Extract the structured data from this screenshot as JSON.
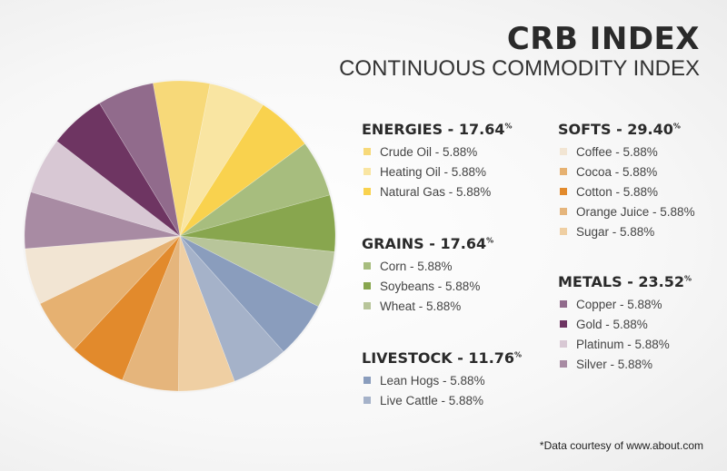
{
  "title": "CRB INDEX",
  "subtitle": "CONTINUOUS COMMODITY INDEX",
  "footnote": "*Data courtesy of www.about.com",
  "chart_data": {
    "type": "pie",
    "title": "CRB INDEX",
    "subtitle": "CONTINUOUS COMMODITY INDEX",
    "groups": [
      {
        "name": "ENERGIES",
        "total": "17.64",
        "items": [
          {
            "label": "Crude Oil - 5.88%",
            "name": "Crude Oil",
            "value": 5.88,
            "color": "#f7d979"
          },
          {
            "label": "Heating Oil - 5.88%",
            "name": "Heating Oil",
            "value": 5.88,
            "color": "#f9e5a2"
          },
          {
            "label": "Natural Gas - 5.88%",
            "name": "Natural Gas",
            "value": 5.88,
            "color": "#f9d24e"
          }
        ]
      },
      {
        "name": "GRAINS",
        "total": "17.64",
        "items": [
          {
            "label": "Corn - 5.88%",
            "name": "Corn",
            "value": 5.88,
            "color": "#a7bd7e"
          },
          {
            "label": "Soybeans - 5.88%",
            "name": "Soybeans",
            "value": 5.88,
            "color": "#88a64e"
          },
          {
            "label": "Wheat - 5.88%",
            "name": "Wheat",
            "value": 5.88,
            "color": "#b8c59a"
          }
        ]
      },
      {
        "name": "LIVESTOCK",
        "total": "11.76",
        "items": [
          {
            "label": "Lean Hogs - 5.88%",
            "name": "Lean Hogs",
            "value": 5.88,
            "color": "#8a9dbd"
          },
          {
            "label": "Live Cattle - 5.88%",
            "name": "Live Cattle",
            "value": 5.88,
            "color": "#a5b2c9"
          }
        ]
      },
      {
        "name": "SOFTS",
        "total": "29.40",
        "items": [
          {
            "label": "Coffee - 5.88%",
            "name": "Coffee",
            "value": 5.88,
            "color": "#f2e5d3"
          },
          {
            "label": "Cocoa - 5.88%",
            "name": "Cocoa",
            "value": 5.88,
            "color": "#e6b171"
          },
          {
            "label": "Cotton - 5.88%",
            "name": "Cotton",
            "value": 5.88,
            "color": "#e28a2c"
          },
          {
            "label": "Orange Juice - 5.88%",
            "name": "Orange Juice",
            "value": 5.88,
            "color": "#e5b57c"
          },
          {
            "label": "Sugar - 5.88%",
            "name": "Sugar",
            "value": 5.88,
            "color": "#efcfa3"
          }
        ]
      },
      {
        "name": "METALS",
        "total": "23.52",
        "items": [
          {
            "label": "Copper - 5.88%",
            "name": "Copper",
            "value": 5.88,
            "color": "#916b8c"
          },
          {
            "label": "Gold - 5.88%",
            "name": "Gold",
            "value": 5.88,
            "color": "#6e3562"
          },
          {
            "label": "Platinum - 5.88%",
            "name": "Platinum",
            "value": 5.88,
            "color": "#d8c8d4"
          },
          {
            "label": "Silver - 5.88%",
            "name": "Silver",
            "value": 5.88,
            "color": "#a88ba3"
          }
        ]
      }
    ],
    "slice_order": [
      "Crude Oil",
      "Heating Oil",
      "Natural Gas",
      "Corn",
      "Soybeans",
      "Wheat",
      "Lean Hogs",
      "Live Cattle",
      "Sugar",
      "Orange Juice",
      "Cotton",
      "Cocoa",
      "Coffee",
      "Silver",
      "Platinum",
      "Gold",
      "Copper"
    ]
  }
}
